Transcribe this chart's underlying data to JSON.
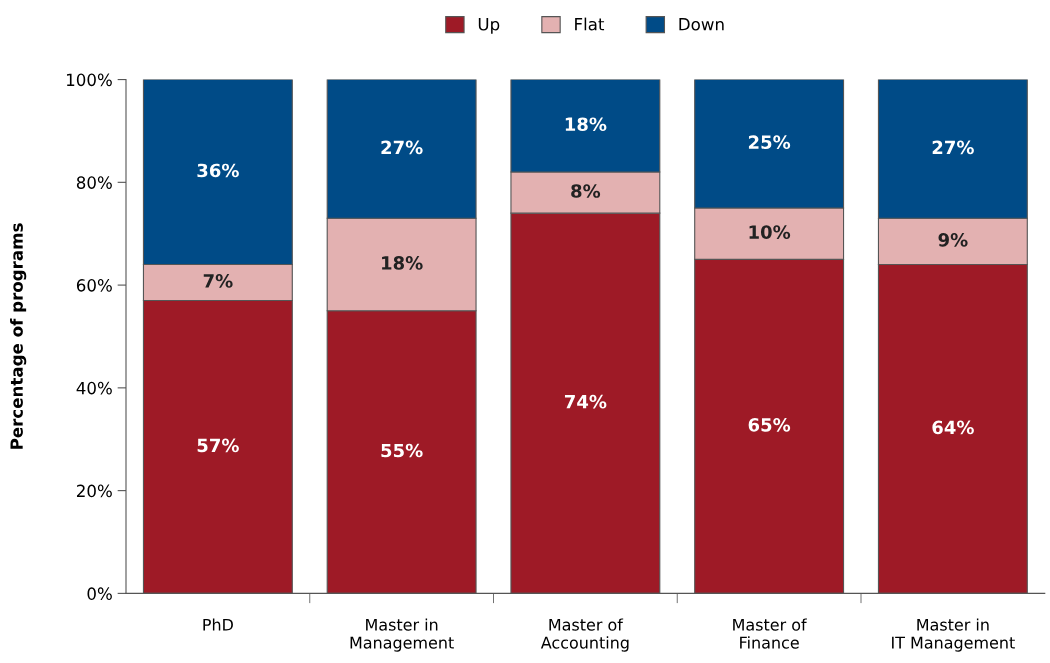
{
  "chart_data": {
    "type": "bar",
    "stacked": true,
    "ylabel": "Percentage of programs",
    "categories": [
      "PhD",
      "Master in\nManagement",
      "Master of\nAccounting",
      "Master of\nFinance",
      "Master in\nIT Management"
    ],
    "series": [
      {
        "name": "Up",
        "color": "#9e1a26",
        "values": [
          57,
          55,
          74,
          65,
          64
        ],
        "value_labels": [
          "57%",
          "55%",
          "74%",
          "65%",
          "64%"
        ]
      },
      {
        "name": "Flat",
        "color": "#e3b1b1",
        "values": [
          7,
          18,
          8,
          10,
          9
        ],
        "value_labels": [
          "7%",
          "18%",
          "8%",
          "10%",
          "9%"
        ]
      },
      {
        "name": "Down",
        "color": "#004b87",
        "values": [
          36,
          27,
          18,
          25,
          27
        ],
        "value_labels": [
          "36%",
          "27%",
          "18%",
          "25%",
          "27%"
        ]
      }
    ],
    "ylim": [
      0,
      100
    ],
    "yticks": [
      {
        "value": 0,
        "label": "0%"
      },
      {
        "value": 20,
        "label": "20%"
      },
      {
        "value": 40,
        "label": "40%"
      },
      {
        "value": 60,
        "label": "60%"
      },
      {
        "value": 80,
        "label": "80%"
      },
      {
        "value": 100,
        "label": "100%"
      }
    ],
    "legend": "top",
    "grid": false
  }
}
